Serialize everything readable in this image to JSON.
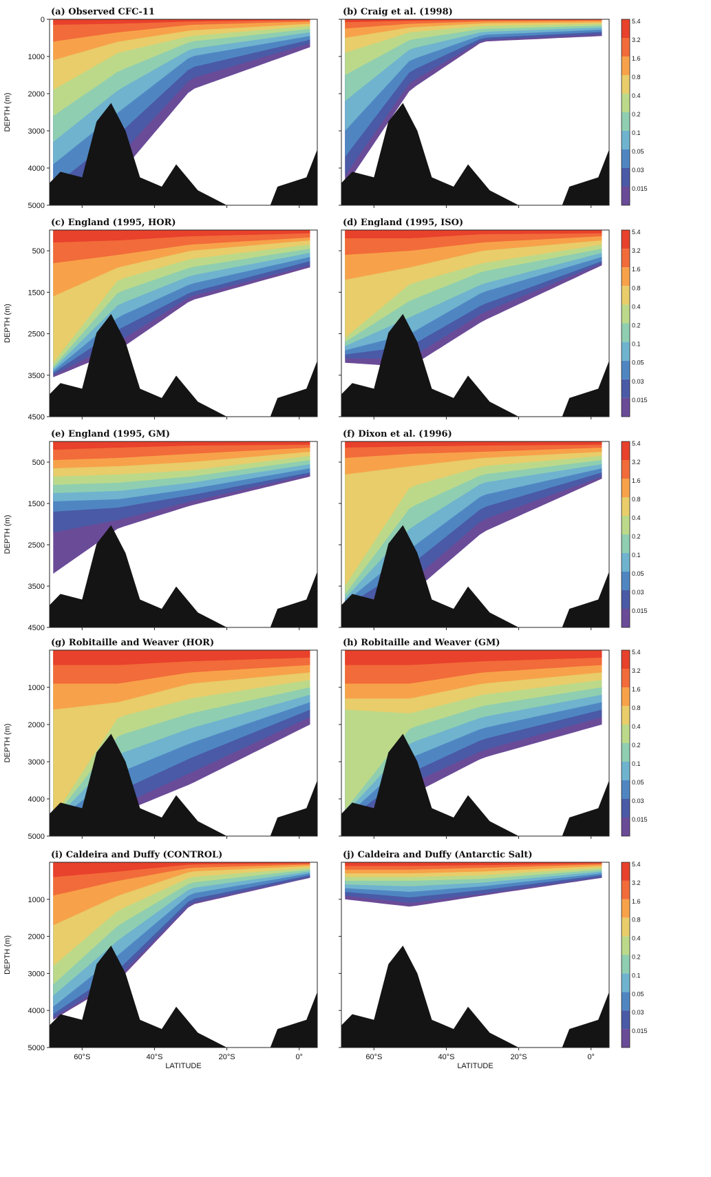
{
  "chart_data": {
    "type": "contour",
    "variable": "CFC-11",
    "xlabel": "LATITUDE",
    "ylabel": "DEPTH (m)",
    "x_ticks": [
      "60°S",
      "40°S",
      "20°S",
      "0°"
    ],
    "xlim": [
      -69,
      5
    ],
    "colorbar_levels": [
      "5.4",
      "3.2",
      "1.6",
      "0.8",
      "0.4",
      "0.2",
      "0.1",
      "0.05",
      "0.03",
      "0.015"
    ],
    "colorbar_colors": [
      "#e8412c",
      "#f26b3a",
      "#f7a24a",
      "#e8cd6a",
      "#bcd98a",
      "#8fceb0",
      "#6fb3cf",
      "#4f86c2",
      "#4a5aa6",
      "#6a4b98"
    ],
    "panels": [
      {
        "label": "(a) Observed CFC-11",
        "ylim": [
          0,
          5000
        ],
        "y_ticks": [
          "0",
          "1000",
          "2000",
          "3000",
          "4000",
          "5000"
        ]
      },
      {
        "label": "(b) Craig et al. (1998)",
        "ylim": [
          0,
          5000
        ],
        "y_ticks": [
          "0",
          "1000",
          "2000",
          "3000",
          "4000",
          "5000"
        ]
      },
      {
        "label": "(c) England (1995, HOR)",
        "ylim": [
          0,
          4500
        ],
        "y_ticks": [
          "500",
          "1500",
          "2500",
          "3500",
          "4500"
        ]
      },
      {
        "label": "(d) England (1995, ISO)",
        "ylim": [
          0,
          4500
        ],
        "y_ticks": [
          "500",
          "1500",
          "2500",
          "3500",
          "4500"
        ]
      },
      {
        "label": "(e) England (1995, GM)",
        "ylim": [
          0,
          4500
        ],
        "y_ticks": [
          "500",
          "1500",
          "2500",
          "3500",
          "4500"
        ]
      },
      {
        "label": "(f) Dixon et al. (1996)",
        "ylim": [
          0,
          4500
        ],
        "y_ticks": [
          "500",
          "1500",
          "2500",
          "3500",
          "4500"
        ]
      },
      {
        "label": "(g) Robitaille and Weaver (HOR)",
        "ylim": [
          0,
          5000
        ],
        "y_ticks": [
          "1000",
          "2000",
          "3000",
          "4000",
          "5000"
        ]
      },
      {
        "label": "(h) Robitaille and Weaver (GM)",
        "ylim": [
          0,
          5000
        ],
        "y_ticks": [
          "1000",
          "2000",
          "3000",
          "4000",
          "5000"
        ]
      },
      {
        "label": "(i) Caldeira and Duffy (CONTROL)",
        "ylim": [
          0,
          5000
        ],
        "y_ticks": [
          "1000",
          "2000",
          "3000",
          "4000",
          "5000"
        ]
      },
      {
        "label": "(j) Caldeira and Duffy (Antarctic Salt)",
        "ylim": [
          0,
          5000
        ],
        "y_ticks": [
          "1000",
          "2000",
          "3000",
          "4000",
          "5000"
        ]
      }
    ]
  }
}
